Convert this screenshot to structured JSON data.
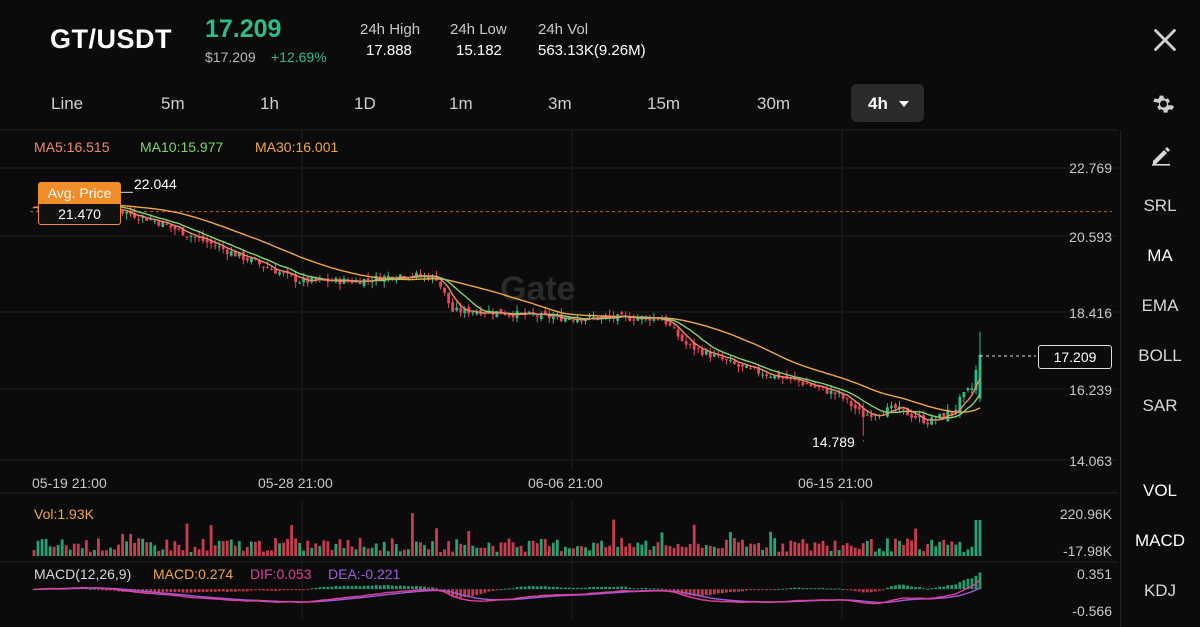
{
  "header": {
    "pair": "GT/USDT",
    "last_price": "17.209",
    "usd_price": "$17.209",
    "change": "+12.69%",
    "stats": [
      {
        "label": "24h High",
        "value": "17.888"
      },
      {
        "label": "24h Low",
        "value": "15.182"
      },
      {
        "label": "24h Vol",
        "value": "563.13K(9.26M)"
      }
    ]
  },
  "timeframes": [
    "Line",
    "5m",
    "1h",
    "1D",
    "1m",
    "3m",
    "15m",
    "30m"
  ],
  "active_timeframe": "4h",
  "indicators": {
    "ma5": "MA5:16.515",
    "ma10": "MA10:15.977",
    "ma30": "MA30:16.001"
  },
  "side_tools": {
    "main": [
      "SRL",
      "MA",
      "EMA",
      "BOLL",
      "SAR"
    ],
    "sub": [
      "VOL",
      "MACD",
      "KDJ"
    ]
  },
  "avg_price": {
    "label": "Avg. Price",
    "value": "21.470"
  },
  "annotations": {
    "high": "22.044",
    "low": "14.789",
    "current": "17.209"
  },
  "watermark": "Gate",
  "price_axis": [
    "22.769",
    "20.593",
    "18.416",
    "16.239",
    "14.063"
  ],
  "time_axis": [
    "05-19 21:00",
    "05-28 21:00",
    "06-06 21:00",
    "06-15 21:00"
  ],
  "volume": {
    "label": "Vol:1.93K",
    "max": "220.96K",
    "min": "-17.98K"
  },
  "macd": {
    "params": "MACD(12,26,9)",
    "macd": "MACD:0.274",
    "dif": "DIF:0.053",
    "dea": "DEA:-0.221",
    "max": "0.351",
    "min": "-0.566"
  },
  "colors": {
    "up": "#2ebd85",
    "down": "#e8465a",
    "ma5": "#f08a6a",
    "ma10": "#7fd66d",
    "ma30": "#f0a64a",
    "dif": "#e0409b",
    "dea": "#a05bdc",
    "accent": "#f28c28"
  },
  "chart_data": {
    "type": "candlestick",
    "interval": "4h",
    "x_range": [
      "05-19 21:00",
      "06-18 13:00"
    ],
    "y_range": [
      14.063,
      22.769
    ],
    "anchors": [
      {
        "i": 0,
        "close": 21.6
      },
      {
        "i": 12,
        "close": 21.8
      },
      {
        "i": 30,
        "close": 21.2
      },
      {
        "i": 50,
        "close": 20.2
      },
      {
        "i": 66,
        "close": 19.4
      },
      {
        "i": 80,
        "close": 19.4
      },
      {
        "i": 92,
        "close": 19.6
      },
      {
        "i": 100,
        "close": 19.5
      },
      {
        "i": 104,
        "close": 18.5
      },
      {
        "i": 112,
        "close": 18.5
      },
      {
        "i": 130,
        "close": 18.3
      },
      {
        "i": 148,
        "close": 18.3
      },
      {
        "i": 156,
        "close": 18.3
      },
      {
        "i": 162,
        "close": 17.5
      },
      {
        "i": 176,
        "close": 16.8
      },
      {
        "i": 190,
        "close": 16.4
      },
      {
        "i": 200,
        "close": 16.0
      },
      {
        "i": 206,
        "close": 15.4
      },
      {
        "i": 214,
        "close": 15.6
      },
      {
        "i": 222,
        "close": 15.2
      },
      {
        "i": 228,
        "close": 15.5
      },
      {
        "i": 233,
        "close": 16.2
      },
      {
        "i": 235,
        "close": 17.2
      }
    ],
    "count": 236,
    "high_marker": 22.044,
    "low_marker": 14.789,
    "avg_price": 21.47,
    "last": 17.209
  }
}
